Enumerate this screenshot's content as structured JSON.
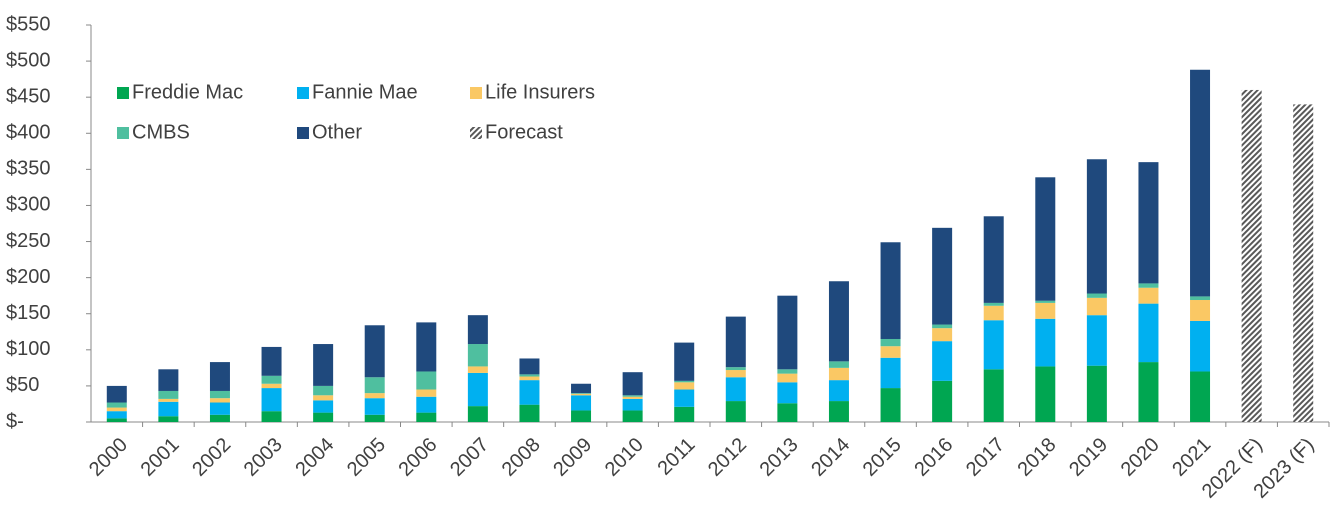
{
  "chart_data": {
    "type": "bar",
    "stacked": true,
    "categories": [
      "2000",
      "2001",
      "2002",
      "2003",
      "2004",
      "2005",
      "2006",
      "2007",
      "2008",
      "2009",
      "2010",
      "2011",
      "2012",
      "2013",
      "2014",
      "2015",
      "2016",
      "2017",
      "2018",
      "2019",
      "2020",
      "2021",
      "2022 (F)",
      "2023 (F)"
    ],
    "series": [
      {
        "name": "Freddie Mac",
        "color": "#00a651",
        "values": [
          5,
          8,
          10,
          15,
          13,
          10,
          13,
          22,
          24,
          16,
          16,
          21,
          29,
          26,
          29,
          47,
          57,
          73,
          77,
          78,
          83,
          70,
          null,
          null
        ]
      },
      {
        "name": "Fannie Mae",
        "color": "#00b0f0",
        "values": [
          10,
          20,
          17,
          32,
          17,
          23,
          22,
          46,
          34,
          21,
          16,
          24,
          33,
          29,
          29,
          42,
          55,
          68,
          66,
          70,
          81,
          70,
          null,
          null
        ]
      },
      {
        "name": "Life Insurers",
        "color": "#fac864",
        "values": [
          5,
          4,
          6,
          6,
          7,
          7,
          10,
          9,
          5,
          2,
          3,
          10,
          10,
          12,
          17,
          16,
          18,
          20,
          22,
          24,
          22,
          29,
          null,
          null
        ]
      },
      {
        "name": "CMBS",
        "color": "#4fbf9f",
        "values": [
          7,
          11,
          10,
          11,
          13,
          22,
          25,
          31,
          3,
          1,
          2,
          2,
          4,
          6,
          9,
          10,
          5,
          4,
          3,
          6,
          6,
          5,
          null,
          null
        ]
      },
      {
        "name": "Other",
        "color": "#1f497d",
        "values": [
          23,
          30,
          40,
          40,
          58,
          72,
          68,
          40,
          22,
          13,
          32,
          53,
          70,
          102,
          111,
          134,
          134,
          120,
          171,
          186,
          168,
          314,
          null,
          null
        ]
      },
      {
        "name": "Forecast",
        "color": "#595959",
        "hatch": true,
        "values": [
          null,
          null,
          null,
          null,
          null,
          null,
          null,
          null,
          null,
          null,
          null,
          null,
          null,
          null,
          null,
          null,
          null,
          null,
          null,
          null,
          null,
          null,
          460,
          440
        ]
      }
    ],
    "ylim": [
      0,
      550
    ],
    "yticks": [
      {
        "value": 0,
        "label": "$-"
      },
      {
        "value": 50,
        "label": "$50"
      },
      {
        "value": 100,
        "label": "$100"
      },
      {
        "value": 150,
        "label": "$150"
      },
      {
        "value": 200,
        "label": "$200"
      },
      {
        "value": 250,
        "label": "$250"
      },
      {
        "value": 300,
        "label": "$300"
      },
      {
        "value": 350,
        "label": "$350"
      },
      {
        "value": 400,
        "label": "$400"
      },
      {
        "value": 450,
        "label": "$450"
      },
      {
        "value": 500,
        "label": "$500"
      },
      {
        "value": 550,
        "label": "$550"
      }
    ],
    "legend": "top-left"
  }
}
